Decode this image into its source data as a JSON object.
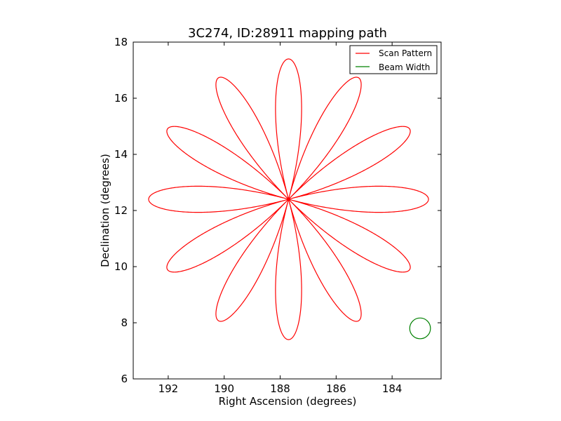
{
  "chart_data": {
    "type": "line",
    "title": "3C274, ID:28911 mapping path",
    "xlabel": "Right Ascension (degrees)",
    "ylabel": "Declination (degrees)",
    "xlim": [
      193.25,
      182.25
    ],
    "ylim": [
      6,
      18
    ],
    "x_ticks": [
      192,
      190,
      188,
      186,
      184
    ],
    "x_tick_labels": [
      "192",
      "190",
      "188",
      "186",
      "184"
    ],
    "y_ticks": [
      6,
      8,
      10,
      12,
      14,
      16,
      18
    ],
    "y_tick_labels": [
      "6",
      "8",
      "10",
      "12",
      "14",
      "16",
      "18"
    ],
    "grid": false,
    "legend_position": "top-right",
    "series": [
      {
        "name": "Scan Pattern",
        "color": "#ff0000",
        "kind": "rose-curve",
        "center": [
          187.7,
          12.4
        ],
        "petals": 12,
        "radius_ra": 5.0,
        "radius_dec": 5.0,
        "path_start": [
          192.9,
          12.4
        ]
      },
      {
        "name": "Beam Width",
        "color": "#008000",
        "kind": "circle",
        "center": [
          183.0,
          7.8
        ],
        "radius_dec": 0.37
      }
    ]
  }
}
